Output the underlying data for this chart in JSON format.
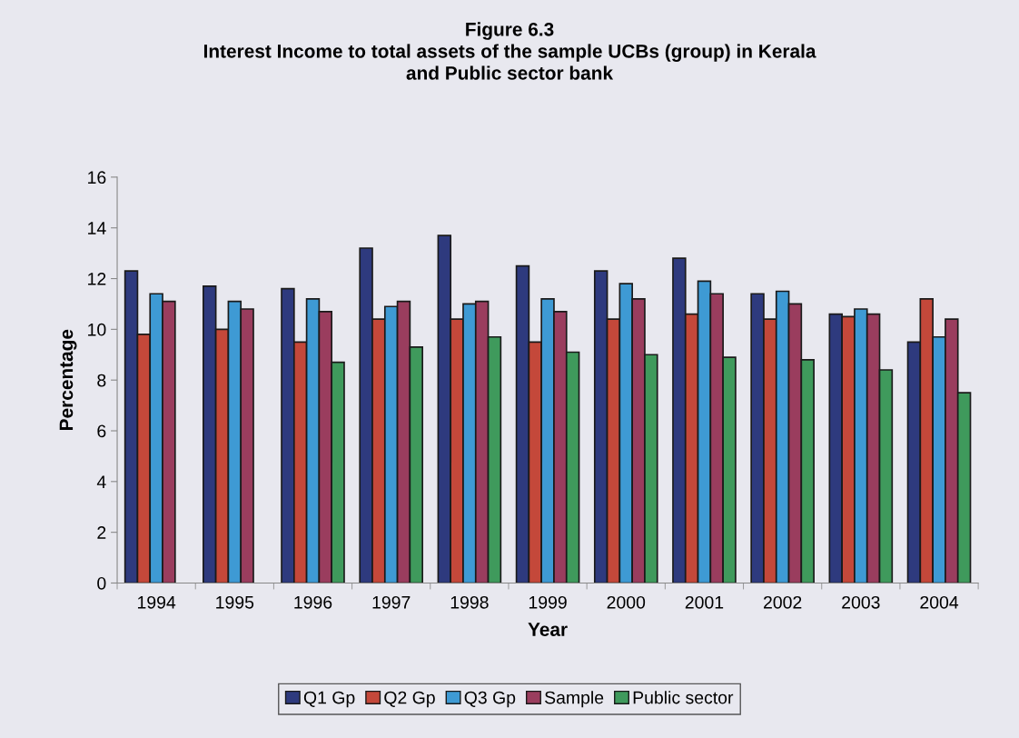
{
  "chart_data": {
    "type": "bar",
    "title": "Figure 6.3\nInterest Income to total assets of the sample UCBs (group) in Kerala\nand Public sector bank",
    "xlabel": "Year",
    "ylabel": "Percentage",
    "categories": [
      "1994",
      "1995",
      "1996",
      "1997",
      "1998",
      "1999",
      "2000",
      "2001",
      "2002",
      "2003",
      "2004"
    ],
    "series": [
      {
        "name": "Q1 Gp",
        "color": "#2e3a7e",
        "values": [
          12.3,
          11.7,
          11.6,
          13.2,
          13.7,
          12.5,
          12.3,
          12.8,
          11.4,
          10.6,
          9.5
        ]
      },
      {
        "name": "Q2 Gp",
        "color": "#c4483a",
        "values": [
          9.8,
          10.0,
          9.5,
          10.4,
          10.4,
          9.5,
          10.4,
          10.6,
          10.4,
          10.5,
          11.2
        ]
      },
      {
        "name": "Q3 Gp",
        "color": "#3e9ad4",
        "values": [
          11.4,
          11.1,
          11.2,
          10.9,
          11.0,
          11.2,
          11.8,
          11.9,
          11.5,
          10.8,
          9.7
        ]
      },
      {
        "name": "Sample",
        "color": "#9a3d5e",
        "values": [
          11.1,
          10.8,
          10.7,
          11.1,
          11.1,
          10.7,
          11.2,
          11.4,
          11.0,
          10.6,
          10.4
        ]
      },
      {
        "name": "Public sector",
        "color": "#3f9a5c",
        "values": [
          null,
          null,
          8.7,
          9.3,
          9.7,
          9.1,
          9.0,
          8.9,
          8.8,
          8.4,
          7.5
        ]
      }
    ],
    "ylim": [
      0,
      16
    ],
    "yticks": [
      0,
      2,
      4,
      6,
      8,
      10,
      12,
      14,
      16
    ],
    "grid": false,
    "legend": "bottom"
  }
}
